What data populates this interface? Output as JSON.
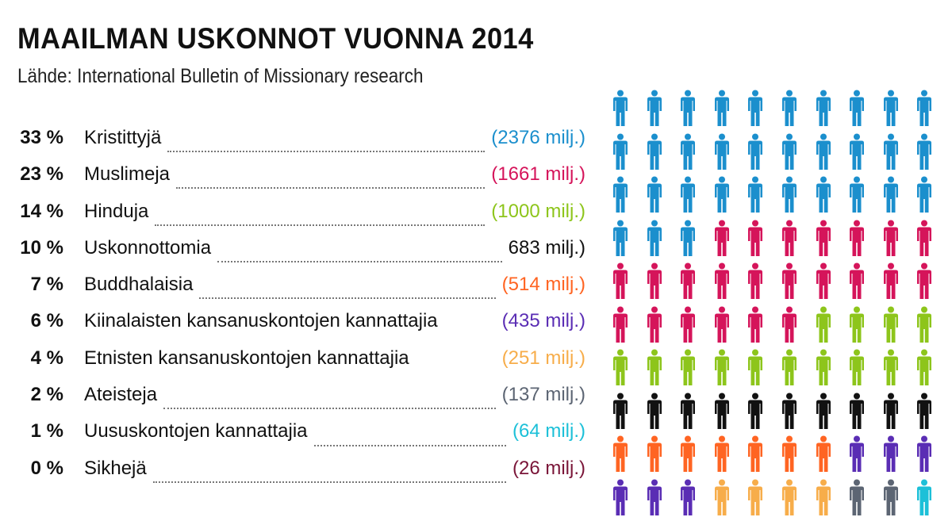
{
  "title": "MAAILMAN USKONNOT VUONNA 2014",
  "subtitle": "Lähde: International Bulletin of Missionary research",
  "chart_data": {
    "type": "pictogram",
    "unit_per_icon": "1 %",
    "columns": 10,
    "items": [
      {
        "pct": "33 %",
        "label": "Kristittyjä",
        "value": "(2376 milj.)",
        "percent": 33,
        "color": "#1b8fcd"
      },
      {
        "pct": "23 %",
        "label": "Muslimeja",
        "value": "(1661 milj.)",
        "percent": 23,
        "color": "#d5145a"
      },
      {
        "pct": "14 %",
        "label": "Hinduja",
        "value": "(1000 milj.)",
        "percent": 14,
        "color": "#8dc51b"
      },
      {
        "pct": "10 %",
        "label": "Uskonnottomia",
        "value": "683 milj.)",
        "percent": 10,
        "color": "#111111"
      },
      {
        "pct": "7 %",
        "label": "Buddhalaisia",
        "value": "(514 milj.)",
        "percent": 7,
        "color": "#ff6422"
      },
      {
        "pct": "6 %",
        "label": "Kiinalaisten kansanuskontojen kannattajia",
        "value": "(435 milj.)",
        "percent": 6,
        "color": "#5a2db4"
      },
      {
        "pct": "4 %",
        "label": "Etnisten kansanuskontojen kannattajia",
        "value": "(251 milj.)",
        "percent": 4,
        "color": "#f7ad4a"
      },
      {
        "pct": "2 %",
        "label": "Ateisteja",
        "value": "(137 milj.)",
        "percent": 2,
        "color": "#5c6573"
      },
      {
        "pct": "1 %",
        "label": "Uususkontojen kannattajia",
        "value": "(64 milj.)",
        "percent": 1,
        "color": "#1cc0d8"
      },
      {
        "pct": "0 %",
        "label": "Sikhejä",
        "value": "(26 milj.)",
        "percent": 0,
        "color": "#7a1538"
      }
    ]
  }
}
